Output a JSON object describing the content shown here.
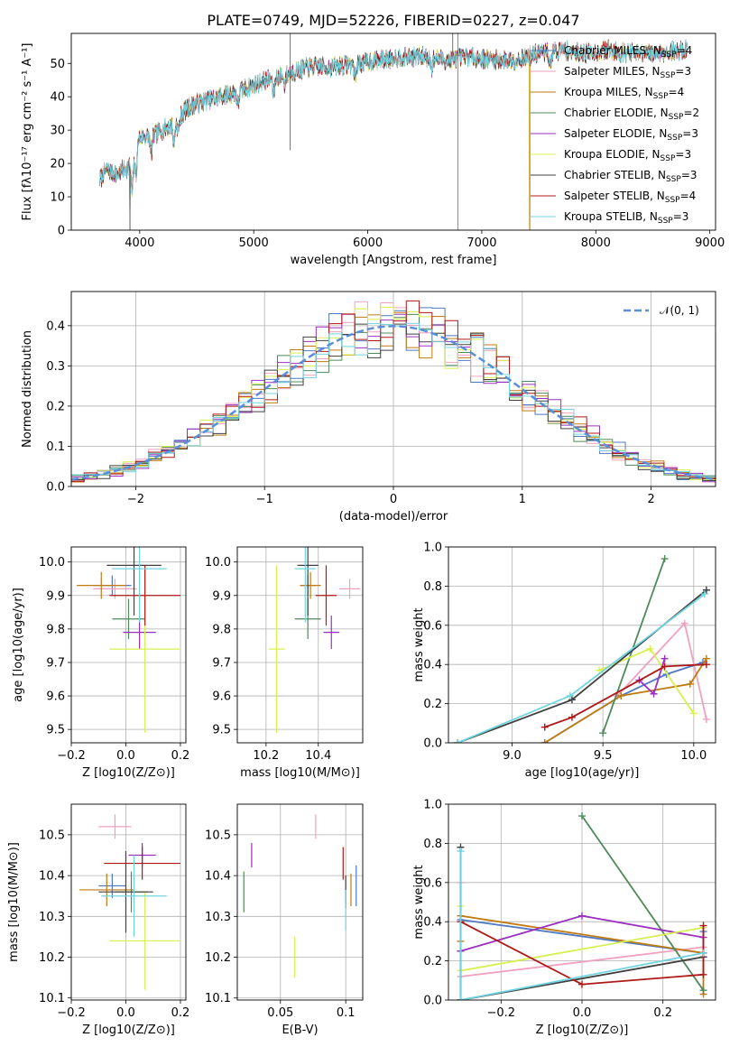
{
  "figure_title": "PLATE=0749, MJD=52226, FIBERID=0227, z=0.047",
  "legend_spectrum": [
    {
      "label": "Chabrier MILES, N",
      "sub": "SSP",
      "tail": "=4",
      "color": "#4e79c4"
    },
    {
      "label": "Salpeter MILES, N",
      "sub": "SSP",
      "tail": "=3",
      "color": "#f2a0c0"
    },
    {
      "label": "Kroupa MILES, N",
      "sub": "SSP",
      "tail": "=4",
      "color": "#c07a10"
    },
    {
      "label": "Chabrier ELODIE, N",
      "sub": "SSP",
      "tail": "=2",
      "color": "#4f8a5a"
    },
    {
      "label": "Salpeter ELODIE, N",
      "sub": "SSP",
      "tail": "=3",
      "color": "#9b30c0"
    },
    {
      "label": "Kroupa ELODIE, N",
      "sub": "SSP",
      "tail": "=3",
      "color": "#d8ef50"
    },
    {
      "label": "Chabrier STELIB, N",
      "sub": "SSP",
      "tail": "=3",
      "color": "#404040"
    },
    {
      "label": "Salpeter STELIB, N",
      "sub": "SSP",
      "tail": "=4",
      "color": "#b01818"
    },
    {
      "label": "Kroupa STELIB, N",
      "sub": "SSP",
      "tail": "=3",
      "color": "#70d4e0"
    }
  ],
  "legend_hist": "𝒩(0, 1)",
  "chart_data": [
    {
      "type": "line",
      "xlabel": "wavelength [Angstrom, rest frame]",
      "ylabel": "Flux [fλ10⁻¹⁷ erg cm⁻² s⁻¹ A⁻¹]",
      "xlim": [
        3400,
        9050
      ],
      "ylim": [
        0,
        59
      ],
      "xticks": [
        4000,
        5000,
        6000,
        7000,
        8000,
        9000
      ],
      "yticks": [
        0,
        10,
        20,
        30,
        40,
        50
      ],
      "grid": false,
      "legend": "upper right",
      "continuum": {
        "x": [
          3650,
          3700,
          3800,
          3900,
          3950,
          4000,
          4100,
          4200,
          4300,
          4400,
          4500,
          4700,
          4900,
          5100,
          5300,
          5500,
          5700,
          5900,
          6100,
          6300,
          6500,
          6700,
          6900,
          7100,
          7300,
          7500,
          7700,
          7900,
          8100,
          8300,
          8500,
          8800
        ],
        "y": [
          15,
          18,
          17,
          19,
          22,
          28,
          28,
          30,
          32,
          36,
          38,
          40,
          42,
          45,
          47,
          49,
          49,
          50,
          51,
          52,
          52,
          51,
          52,
          51,
          51,
          53,
          54,
          53,
          54,
          53,
          53,
          54
        ]
      },
      "drops_to_zero": [
        3915,
        6790,
        7420
      ]
    },
    {
      "type": "bar",
      "xlabel": "(data-model)/error",
      "ylabel": "Normed distribution",
      "xlim": [
        -2.5,
        2.5
      ],
      "ylim": [
        0,
        0.485
      ],
      "xticks": [
        -2,
        -1,
        0,
        1,
        2
      ],
      "yticks": [
        0.0,
        0.1,
        0.2,
        0.3,
        0.4
      ],
      "grid": true,
      "legend": "upper right",
      "bin_width": 0.1,
      "gaussian": {
        "mean": 0,
        "sigma": 1
      }
    },
    {
      "type": "scatter",
      "xlabel": "Z [log10(Z/Z⊙)]",
      "ylabel": "age [log10(age/yr)]",
      "xlim": [
        -0.2,
        0.22
      ],
      "ylim": [
        9.46,
        10.045
      ],
      "xticks": [
        -0.2,
        0.0,
        0.2
      ],
      "yticks": [
        9.5,
        9.6,
        9.7,
        9.8,
        9.9,
        10.0
      ],
      "grid": true,
      "points": [
        {
          "x": -0.05,
          "y": 9.93,
          "xerr": 0.07,
          "yerr": 0.03,
          "series": 0
        },
        {
          "x": -0.04,
          "y": 9.92,
          "xerr": 0.08,
          "yerr": 0.03,
          "series": 1
        },
        {
          "x": -0.09,
          "y": 9.93,
          "xerr": 0.09,
          "yerr": 0.04,
          "series": 2
        },
        {
          "x": 0.01,
          "y": 9.83,
          "xerr": 0.06,
          "yerr": 0.06,
          "series": 3
        },
        {
          "x": 0.05,
          "y": 9.79,
          "xerr": 0.06,
          "yerr": 0.05,
          "series": 4
        },
        {
          "x": 0.07,
          "y": 9.74,
          "xerr": 0.13,
          "yerr": 0.25,
          "series": 5
        },
        {
          "x": 0.03,
          "y": 9.99,
          "xerr": 0.1,
          "yerr": 0.15,
          "series": 6
        },
        {
          "x": 0.07,
          "y": 9.9,
          "xerr": 0.13,
          "yerr": 0.09,
          "series": 7
        },
        {
          "x": 0.05,
          "y": 9.98,
          "xerr": 0.1,
          "yerr": 0.16,
          "series": 8
        }
      ]
    },
    {
      "type": "scatter",
      "xlabel": "mass [log10(M/M⊙)]",
      "ylabel": "",
      "xlim": [
        10.09,
        10.57
      ],
      "ylim": [
        9.46,
        10.045
      ],
      "xticks": [
        10.2,
        10.4
      ],
      "yticks": [
        9.5,
        9.6,
        9.7,
        9.8,
        9.9,
        10.0
      ],
      "grid": true,
      "points": [
        {
          "x": 10.36,
          "y": 9.93,
          "xerr": 0.03,
          "yerr": 0.03,
          "series": 0
        },
        {
          "x": 10.52,
          "y": 9.92,
          "xerr": 0.04,
          "yerr": 0.03,
          "series": 1
        },
        {
          "x": 10.37,
          "y": 9.93,
          "xerr": 0.04,
          "yerr": 0.04,
          "series": 2
        },
        {
          "x": 10.36,
          "y": 9.83,
          "xerr": 0.05,
          "yerr": 0.06,
          "series": 3
        },
        {
          "x": 10.45,
          "y": 9.79,
          "xerr": 0.03,
          "yerr": 0.05,
          "series": 4
        },
        {
          "x": 10.24,
          "y": 9.74,
          "xerr": 0.03,
          "yerr": 0.25,
          "series": 5
        },
        {
          "x": 10.36,
          "y": 9.99,
          "xerr": 0.04,
          "yerr": 0.15,
          "series": 6
        },
        {
          "x": 10.43,
          "y": 9.9,
          "xerr": 0.04,
          "yerr": 0.09,
          "series": 7
        },
        {
          "x": 10.35,
          "y": 9.98,
          "xerr": 0.04,
          "yerr": 0.16,
          "series": 8
        }
      ]
    },
    {
      "type": "line",
      "xlabel": "age [log10(age/yr)]",
      "ylabel": "mass weight",
      "xlim": [
        8.65,
        10.12
      ],
      "ylim": [
        0,
        1.0
      ],
      "xticks": [
        9.0,
        9.5,
        10.0
      ],
      "yticks": [
        0.0,
        0.2,
        0.4,
        0.6,
        0.8,
        1.0
      ],
      "grid": true,
      "series": [
        {
          "x": [
            9.18,
            9.6,
            9.85,
            10.05
          ],
          "y": [
            0.0,
            0.24,
            0.35,
            0.41
          ]
        },
        {
          "x": [
            9.58,
            9.95,
            10.07
          ],
          "y": [
            0.24,
            0.61,
            0.12
          ]
        },
        {
          "x": [
            9.18,
            9.6,
            9.98,
            10.07
          ],
          "y": [
            0.0,
            0.24,
            0.3,
            0.43
          ]
        },
        {
          "x": [
            9.5,
            9.84
          ],
          "y": [
            0.05,
            0.94
          ]
        },
        {
          "x": [
            9.7,
            9.78,
            9.84
          ],
          "y": [
            0.32,
            0.25,
            0.43
          ]
        },
        {
          "x": [
            9.48,
            9.76,
            10.0
          ],
          "y": [
            0.37,
            0.48,
            0.15
          ]
        },
        {
          "x": [
            8.7,
            9.33,
            10.07
          ],
          "y": [
            0.0,
            0.22,
            0.78
          ]
        },
        {
          "x": [
            9.18,
            9.33,
            9.84,
            10.07
          ],
          "y": [
            0.08,
            0.13,
            0.39,
            0.4
          ]
        },
        {
          "x": [
            8.7,
            9.32,
            10.06
          ],
          "y": [
            0.0,
            0.24,
            0.76
          ]
        }
      ]
    },
    {
      "type": "scatter",
      "xlabel": "Z [log10(Z/Z⊙)]",
      "ylabel": "mass [log10(M/M⊙)]",
      "xlim": [
        -0.2,
        0.22
      ],
      "ylim": [
        10.095,
        10.575
      ],
      "xticks": [
        -0.2,
        0.0,
        0.2
      ],
      "yticks": [
        10.1,
        10.2,
        10.3,
        10.4,
        10.5
      ],
      "grid": true,
      "points": [
        {
          "x": -0.05,
          "y": 10.375,
          "xerr": 0.05,
          "yerr": 0.03,
          "series": 0
        },
        {
          "x": -0.04,
          "y": 10.52,
          "xerr": 0.06,
          "yerr": 0.03,
          "series": 1
        },
        {
          "x": -0.07,
          "y": 10.365,
          "xerr": 0.1,
          "yerr": 0.04,
          "series": 2
        },
        {
          "x": 0.02,
          "y": 10.36,
          "xerr": 0.06,
          "yerr": 0.05,
          "series": 3
        },
        {
          "x": 0.06,
          "y": 10.45,
          "xerr": 0.05,
          "yerr": 0.03,
          "series": 4
        },
        {
          "x": 0.07,
          "y": 10.24,
          "xerr": 0.13,
          "yerr": 0.12,
          "series": 5
        },
        {
          "x": 0.0,
          "y": 10.36,
          "xerr": 0.1,
          "yerr": 0.1,
          "series": 6
        },
        {
          "x": 0.06,
          "y": 10.43,
          "xerr": 0.14,
          "yerr": 0.04,
          "series": 7
        },
        {
          "x": 0.03,
          "y": 10.35,
          "xerr": 0.12,
          "yerr": 0.1,
          "series": 8
        }
      ]
    },
    {
      "type": "scatter",
      "xlabel": "E(B-V)",
      "ylabel": "",
      "xlim": [
        0.017,
        0.113
      ],
      "ylim": [
        10.095,
        10.575
      ],
      "xticks": [
        0.05,
        0.1
      ],
      "yticks": [
        10.1,
        10.2,
        10.3,
        10.4,
        10.5
      ],
      "grid": true,
      "points": [
        {
          "x": 0.108,
          "y": 10.375,
          "xerr": 0,
          "yerr": 0.05,
          "series": 0
        },
        {
          "x": 0.077,
          "y": 10.52,
          "xerr": 0,
          "yerr": 0.03,
          "series": 1
        },
        {
          "x": 0.104,
          "y": 10.365,
          "xerr": 0,
          "yerr": 0.04,
          "series": 2
        },
        {
          "x": 0.022,
          "y": 10.36,
          "xerr": 0,
          "yerr": 0.05,
          "series": 3
        },
        {
          "x": 0.028,
          "y": 10.45,
          "xerr": 0,
          "yerr": 0.03,
          "series": 4
        },
        {
          "x": 0.061,
          "y": 10.2,
          "xerr": 0,
          "yerr": 0.05,
          "series": 5
        },
        {
          "x": 0.1,
          "y": 10.36,
          "xerr": 0,
          "yerr": 0.04,
          "series": 6
        },
        {
          "x": 0.098,
          "y": 10.43,
          "xerr": 0,
          "yerr": 0.04,
          "series": 7
        },
        {
          "x": 0.1,
          "y": 10.315,
          "xerr": 0,
          "yerr": 0.05,
          "series": 8
        }
      ]
    },
    {
      "type": "line",
      "xlabel": "Z [log10(Z/Z⊙)]",
      "ylabel": "mass weight",
      "xlim": [
        -0.33,
        0.33
      ],
      "ylim": [
        0,
        1.0
      ],
      "xticks": [
        -0.2,
        0.0,
        0.2
      ],
      "yticks": [
        0.0,
        0.2,
        0.4,
        0.6,
        0.8,
        1.0
      ],
      "grid": true,
      "series": [
        {
          "x": [
            -0.3,
            -0.3,
            0.3,
            0.3
          ],
          "y": [
            0.0,
            0.41,
            0.24,
            0.35
          ]
        },
        {
          "x": [
            -0.3,
            -0.3,
            0.3
          ],
          "y": [
            0.6,
            0.12,
            0.27
          ]
        },
        {
          "x": [
            -0.3,
            -0.3,
            0.3,
            0.3
          ],
          "y": [
            0.3,
            0.43,
            0.24,
            0.03
          ]
        },
        {
          "x": [
            0.0,
            0.3
          ],
          "y": [
            0.94,
            0.05
          ]
        },
        {
          "x": [
            -0.3,
            0.0,
            0.3
          ],
          "y": [
            0.25,
            0.43,
            0.32
          ]
        },
        {
          "x": [
            -0.3,
            -0.3,
            0.3
          ],
          "y": [
            0.48,
            0.15,
            0.37
          ]
        },
        {
          "x": [
            -0.3,
            -0.3,
            0.3
          ],
          "y": [
            0.78,
            0.0,
            0.22
          ]
        },
        {
          "x": [
            -0.3,
            0.0,
            0.3,
            0.3
          ],
          "y": [
            0.4,
            0.08,
            0.13,
            0.38
          ]
        },
        {
          "x": [
            -0.3,
            -0.3,
            0.3
          ],
          "y": [
            0.76,
            0.0,
            0.24
          ]
        }
      ]
    }
  ]
}
